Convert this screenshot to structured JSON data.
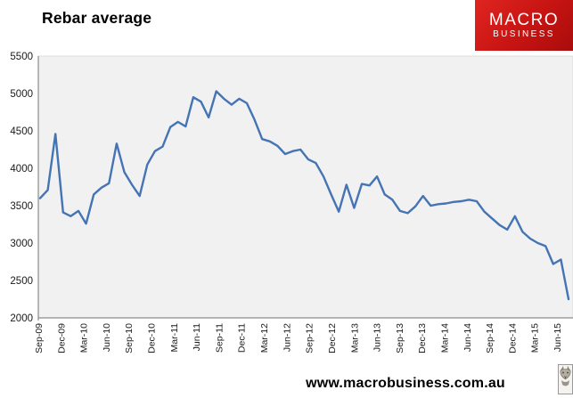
{
  "title": "Rebar average",
  "logo": {
    "line1": "MACRO",
    "line2": "BUSINESS",
    "bg_color": "#c61412",
    "text_color": "#ffffff"
  },
  "footer": {
    "url": "www.macrobusiness.com.au"
  },
  "icons": {
    "bottom_right": "wolf-logo"
  },
  "chart_data": {
    "type": "line",
    "title": "Rebar average",
    "xlabel": "",
    "ylabel": "",
    "ylim": [
      2000,
      5500
    ],
    "y_ticks": [
      5500,
      5000,
      4500,
      4000,
      3500,
      3000,
      2500,
      2000
    ],
    "x_tick_labels": [
      "Sep-09",
      "Dec-09",
      "Mar-10",
      "Jun-10",
      "Sep-10",
      "Dec-10",
      "Mar-11",
      "Jun-11",
      "Sep-11",
      "Dec-11",
      "Mar-12",
      "Jun-12",
      "Sep-12",
      "Dec-12",
      "Mar-13",
      "Jun-13",
      "Sep-13",
      "Dec-13",
      "Mar-14",
      "Jun-14",
      "Sep-14",
      "Dec-14",
      "Mar-15",
      "Jun-15"
    ],
    "grid": false,
    "legend": "none",
    "plot_bg": "#f1f1f1",
    "axis_color": "#8c8c8c",
    "series_color": "#4574b4",
    "categories": [
      "Sep-09",
      "Oct-09",
      "Nov-09",
      "Dec-09",
      "Jan-10",
      "Feb-10",
      "Mar-10",
      "Apr-10",
      "May-10",
      "Jun-10",
      "Jul-10",
      "Aug-10",
      "Sep-10",
      "Oct-10",
      "Nov-10",
      "Dec-10",
      "Jan-11",
      "Feb-11",
      "Mar-11",
      "Apr-11",
      "May-11",
      "Jun-11",
      "Jul-11",
      "Aug-11",
      "Sep-11",
      "Oct-11",
      "Nov-11",
      "Dec-11",
      "Jan-12",
      "Feb-12",
      "Mar-12",
      "Apr-12",
      "May-12",
      "Jun-12",
      "Jul-12",
      "Aug-12",
      "Sep-12",
      "Oct-12",
      "Nov-12",
      "Dec-12",
      "Jan-13",
      "Feb-13",
      "Mar-13",
      "Apr-13",
      "May-13",
      "Jun-13",
      "Jul-13",
      "Aug-13",
      "Sep-13",
      "Oct-13",
      "Nov-13",
      "Dec-13",
      "Jan-14",
      "Feb-14",
      "Mar-14",
      "Apr-14",
      "May-14",
      "Jun-14",
      "Jul-14",
      "Aug-14",
      "Sep-14",
      "Oct-14",
      "Nov-14",
      "Dec-14",
      "Jan-15",
      "Feb-15",
      "Mar-15",
      "Apr-15",
      "May-15",
      "Jun-15"
    ],
    "values": [
      3600,
      3710,
      4460,
      3410,
      3360,
      3430,
      3260,
      3650,
      3740,
      3800,
      4330,
      3950,
      3780,
      3630,
      4050,
      4230,
      4290,
      4550,
      4620,
      4560,
      4950,
      4890,
      4680,
      5030,
      4930,
      4850,
      4930,
      4870,
      4650,
      4390,
      4360,
      4300,
      4190,
      4230,
      4250,
      4120,
      4070,
      3890,
      3650,
      3420,
      3780,
      3470,
      3790,
      3770,
      3890,
      3650,
      3580,
      3430,
      3400,
      3490,
      3630,
      3500,
      3520,
      3530,
      3550,
      3560,
      3580,
      3560,
      3420,
      3330,
      3240,
      3180,
      3360,
      3150,
      3060,
      3000,
      2960,
      2720,
      2780,
      2250
    ]
  }
}
